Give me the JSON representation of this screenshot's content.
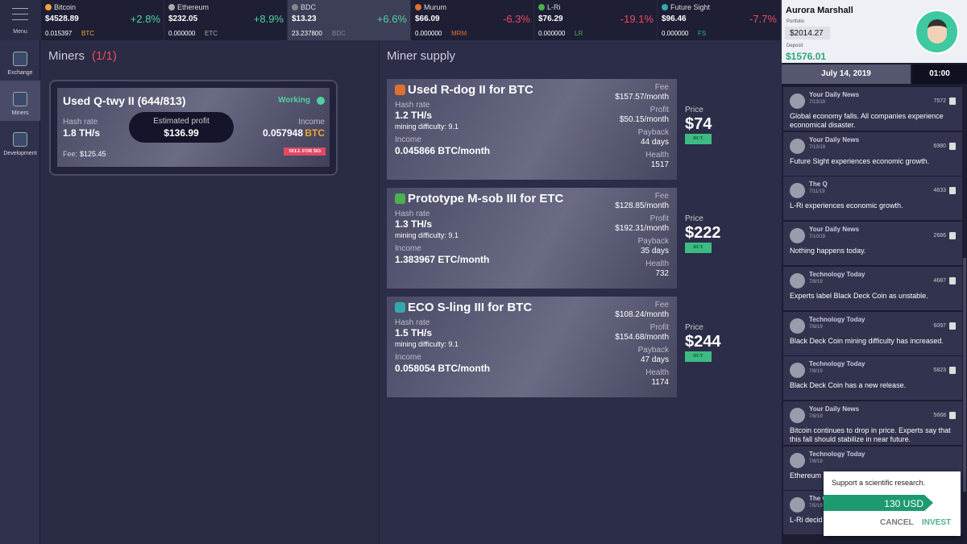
{
  "sidebar": {
    "menu": "Menu",
    "nav": [
      "Exchange",
      "Miners",
      "Development"
    ]
  },
  "tickers": [
    {
      "name": "Bitcoin",
      "price": "$4528.89",
      "change": "+2.8%",
      "holding": "0.015397",
      "symbol": "BTC"
    },
    {
      "name": "Ethereum",
      "price": "$232.05",
      "change": "+8.9%",
      "holding": "0.000000",
      "symbol": "ETC"
    },
    {
      "name": "BDC",
      "price": "$13.23",
      "change": "+6.6%",
      "holding": "23.237800",
      "symbol": "BDC"
    },
    {
      "name": "Murum",
      "price": "$66.09",
      "change": "-6.3%",
      "holding": "0.000000",
      "symbol": "MRM"
    },
    {
      "name": "L-Ri",
      "price": "$76.29",
      "change": "-19.1%",
      "holding": "0.000000",
      "symbol": "LR"
    },
    {
      "name": "Future Sight",
      "price": "$96.46",
      "change": "-7.7%",
      "holding": "0.000000",
      "symbol": "FS"
    }
  ],
  "profile": {
    "name": "Aurora Marshall",
    "portfolio_label": "Portfolio",
    "portfolio": "$2014.27",
    "deposit_label": "Deposit",
    "deposit": "$1576.01",
    "date": "July 14, 2019",
    "time": "01:00"
  },
  "miners": {
    "title": "Miners",
    "count": "(1/1)",
    "card": {
      "name": "Used Q-twy II (644/813)",
      "status": "Working",
      "hash_label": "Hash rate",
      "hash": "1.8 TH/s",
      "profit_label": "Estimated profit",
      "profit": "$136.99",
      "income_label": "Income",
      "income": "0.057948",
      "income_symbol": "BTC",
      "fee_label": "Fee:",
      "fee": "$125.45",
      "sell": "SELL FOR $63"
    }
  },
  "supply": {
    "title": "Miner supply",
    "items": [
      {
        "name": "Used R-dog II for BTC",
        "hash_label": "Hash rate",
        "hash": "1.2 TH/s",
        "difficulty": "mining difficulty: 9.1",
        "income_label": "Income",
        "income": "0.045866 BTC/month",
        "fee_label": "Fee",
        "fee": "$157.57/month",
        "profit_label": "Profit",
        "profit": "$50.15/month",
        "payback_label": "Payback",
        "payback": "44 days",
        "health_label": "Health",
        "health": "1517",
        "price_label": "Price",
        "price": "$74",
        "buy": "BUY"
      },
      {
        "name": "Prototype M-sob III for ETC",
        "hash_label": "Hash rate",
        "hash": "1.3 TH/s",
        "difficulty": "mining difficulty: 9.1",
        "income_label": "Income",
        "income": "1.383967 ETC/month",
        "fee_label": "Fee",
        "fee": "$128.85/month",
        "profit_label": "Profit",
        "profit": "$192.31/month",
        "payback_label": "Payback",
        "payback": "35 days",
        "health_label": "Health",
        "health": "732",
        "price_label": "Price",
        "price": "$222",
        "buy": "BUY"
      },
      {
        "name": "ECO S-ling III for BTC",
        "hash_label": "Hash rate",
        "hash": "1.5 TH/s",
        "difficulty": "mining difficulty: 9.1",
        "income_label": "Income",
        "income": "0.058054 BTC/month",
        "fee_label": "Fee",
        "fee": "$108.24/month",
        "profit_label": "Profit",
        "profit": "$154.68/month",
        "payback_label": "Payback",
        "payback": "47 days",
        "health_label": "Health",
        "health": "1174",
        "price_label": "Price",
        "price": "$244",
        "buy": "BUY"
      }
    ]
  },
  "news": [
    {
      "source": "Your Daily News",
      "date": "7/13/19",
      "count": "7572",
      "text": "Global economy falls. All companies experience economical disaster."
    },
    {
      "source": "Your Daily News",
      "date": "7/13/19",
      "count": "6980",
      "text": "Future Sight experiences economic growth."
    },
    {
      "source": "The Q",
      "date": "7/11/19",
      "count": "4633",
      "text": "L-Ri experiences economic growth."
    },
    {
      "source": "Your Daily News",
      "date": "7/10/19",
      "count": "2686",
      "text": "Nothing happens today."
    },
    {
      "source": "Technology Today",
      "date": "7/8/19",
      "count": "4687",
      "text": "Experts label Black Deck Coin as unstable."
    },
    {
      "source": "Technology Today",
      "date": "7/8/19",
      "count": "6097",
      "text": "Black Deck Coin mining difficulty has increased."
    },
    {
      "source": "Technology Today",
      "date": "7/8/19",
      "count": "5823",
      "text": "Black Deck Coin has a new release."
    },
    {
      "source": "Your Daily News",
      "date": "7/8/19",
      "count": "5668",
      "text": "Bitcoin continues to drop in price. Experts say that this fall should stabilize in near future."
    },
    {
      "source": "Technology Today",
      "date": "7/8/19",
      "text": "Ethereum"
    },
    {
      "source": "The Q",
      "date": "7/5/19",
      "text": "L-Ri decid"
    }
  ],
  "popup": {
    "text": "Support a scientific research.",
    "amount": "130 USD",
    "cancel": "CANCEL",
    "invest": "INVEST"
  }
}
